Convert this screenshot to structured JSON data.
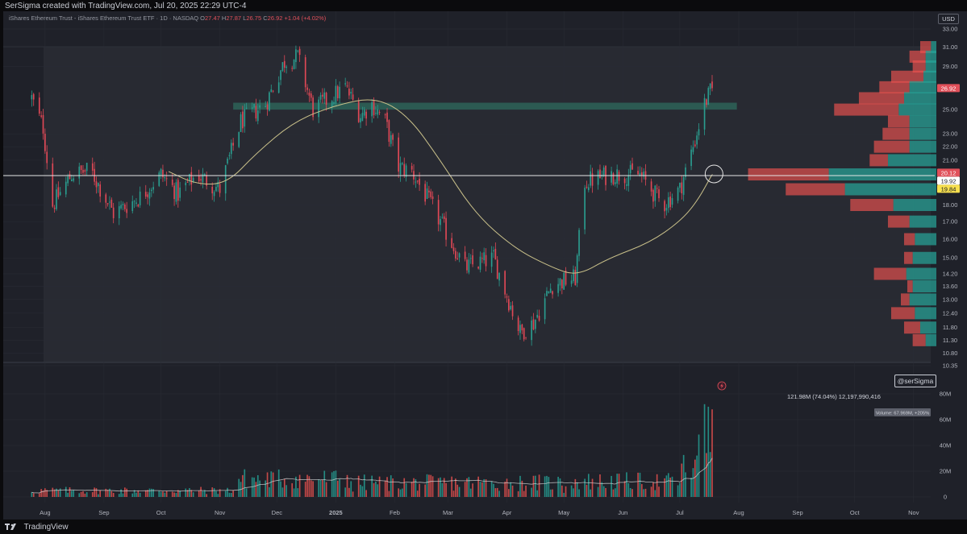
{
  "header": {
    "credit": "SerSigma created with TradingView.com, Jul 20, 2025 22:29 UTC-4"
  },
  "legend": {
    "symbol": "iShares Ethereum Trust - iShares Ethereum Trust ETF · 1D · NASDAQ",
    "o_label": "O",
    "o_value": "27.47",
    "h_label": "H",
    "h_value": "27.87",
    "l_label": "L",
    "l_value": "26.75",
    "c_label": "C",
    "c_value": "26.92",
    "change": "+1.04 (+4.02%)"
  },
  "currency_badge": "USD",
  "watermark": "@serSigma",
  "volume_profile_readout": "121.98M (74.04%) 12,197,990,416",
  "volume_badge": "Volume: 67.969M, +205%",
  "footer": {
    "brand": "TradingView"
  },
  "colors": {
    "background": "#1f2129",
    "up": "#26a69a",
    "down": "#ef5350",
    "up_candle": "#2a9d8f",
    "down_candle": "#e04856",
    "ma_line": "#c9c08a",
    "zone": "#2e6b5e",
    "hline": "#e6e6e6",
    "price_badge_red": "#e0505a",
    "price_badge_yellow": "#f7e04f"
  },
  "icons": [
    "lightning-icon",
    "tradingview-logo-icon"
  ],
  "chart_data": [
    {
      "type": "candlestick",
      "price_axis": {
        "scale": "log",
        "ticks": [
          "33.00",
          "31.00",
          "29.00",
          "25.00",
          "23.00",
          "22.00",
          "21.00",
          "18.00",
          "17.00",
          "16.00",
          "15.00",
          "14.20",
          "13.60",
          "13.00",
          "12.40",
          "11.80",
          "11.30",
          "10.80",
          "10.35"
        ],
        "ylim": [
          10.35,
          33.0
        ]
      },
      "price_labels": [
        {
          "value": "26.92",
          "style": "red"
        },
        {
          "value": "20.12",
          "style": "red"
        },
        {
          "value": "19.92",
          "style": "white"
        },
        {
          "value": "19.84",
          "style": "yellow"
        }
      ],
      "time_axis": {
        "ticks": [
          "Aug",
          "Sep",
          "Oct",
          "Nov",
          "Dec",
          "2025",
          "Feb",
          "Mar",
          "Apr",
          "May",
          "Jun",
          "Jul",
          "Aug",
          "Sep",
          "Oct",
          "Nov"
        ]
      },
      "anchors": [
        {
          "date": "2024-07-25",
          "close": 26.0
        },
        {
          "date": "2024-07-31",
          "close": 23.5
        },
        {
          "date": "2024-08-05",
          "close": 18.0
        },
        {
          "date": "2024-08-15",
          "close": 20.0
        },
        {
          "date": "2024-08-25",
          "close": 20.3
        },
        {
          "date": "2024-09-06",
          "close": 17.5
        },
        {
          "date": "2024-09-20",
          "close": 18.5
        },
        {
          "date": "2024-10-01",
          "close": 20.0
        },
        {
          "date": "2024-10-10",
          "close": 18.7
        },
        {
          "date": "2024-10-20",
          "close": 20.0
        },
        {
          "date": "2024-11-01",
          "close": 19.0
        },
        {
          "date": "2024-11-12",
          "close": 24.0
        },
        {
          "date": "2024-11-25",
          "close": 25.5
        },
        {
          "date": "2024-12-05",
          "close": 29.5
        },
        {
          "date": "2024-12-12",
          "close": 30.0
        },
        {
          "date": "2024-12-20",
          "close": 25.0
        },
        {
          "date": "2025-01-06",
          "close": 27.0
        },
        {
          "date": "2025-01-14",
          "close": 24.5
        },
        {
          "date": "2025-01-20",
          "close": 25.5
        },
        {
          "date": "2025-01-27",
          "close": 24.0
        },
        {
          "date": "2025-02-03",
          "close": 20.5
        },
        {
          "date": "2025-02-10",
          "close": 20.2
        },
        {
          "date": "2025-02-25",
          "close": 17.0
        },
        {
          "date": "2025-03-10",
          "close": 14.5
        },
        {
          "date": "2025-03-25",
          "close": 15.0
        },
        {
          "date": "2025-04-08",
          "close": 11.6
        },
        {
          "date": "2025-04-15",
          "close": 12.0
        },
        {
          "date": "2025-04-25",
          "close": 13.7
        },
        {
          "date": "2025-05-07",
          "close": 14.0
        },
        {
          "date": "2025-05-12",
          "close": 19.5
        },
        {
          "date": "2025-05-25",
          "close": 20.0
        },
        {
          "date": "2025-06-10",
          "close": 20.0
        },
        {
          "date": "2025-06-22",
          "close": 18.0
        },
        {
          "date": "2025-07-01",
          "close": 19.0
        },
        {
          "date": "2025-07-09",
          "close": 22.5
        },
        {
          "date": "2025-07-14",
          "close": 25.5
        },
        {
          "date": "2025-07-18",
          "close": 26.92
        }
      ],
      "moving_average": [
        {
          "date": "2024-10-05",
          "value": 20.2
        },
        {
          "date": "2024-10-20",
          "value": 19.3
        },
        {
          "date": "2024-11-05",
          "value": 19.4
        },
        {
          "date": "2024-11-20",
          "value": 21.5
        },
        {
          "date": "2024-12-10",
          "value": 24.0
        },
        {
          "date": "2025-01-01",
          "value": 25.4
        },
        {
          "date": "2025-01-22",
          "value": 26.1
        },
        {
          "date": "2025-02-08",
          "value": 24.5
        },
        {
          "date": "2025-02-25",
          "value": 21.0
        },
        {
          "date": "2025-03-15",
          "value": 17.5
        },
        {
          "date": "2025-04-05",
          "value": 15.5
        },
        {
          "date": "2025-04-25",
          "value": 14.5
        },
        {
          "date": "2025-05-08",
          "value": 14.1
        },
        {
          "date": "2025-05-25",
          "value": 15.0
        },
        {
          "date": "2025-06-15",
          "value": 15.8
        },
        {
          "date": "2025-07-01",
          "value": 17.0
        },
        {
          "date": "2025-07-10",
          "value": 18.2
        },
        {
          "date": "2025-07-18",
          "value": 20.0
        }
      ],
      "horizontal_line": 19.92,
      "zone": {
        "low": 25.0,
        "high": 25.6,
        "from": "2024-11-08",
        "to": "2025-07-31"
      },
      "volume_profile": [
        {
          "price": 31.0,
          "up": 0.05,
          "down": 0.1
        },
        {
          "price": 30.0,
          "up": 0.1,
          "down": 0.15
        },
        {
          "price": 29.0,
          "up": 0.1,
          "down": 0.12
        },
        {
          "price": 28.0,
          "up": 0.12,
          "down": 0.3
        },
        {
          "price": 27.0,
          "up": 0.25,
          "down": 0.28
        },
        {
          "price": 26.0,
          "up": 0.3,
          "down": 0.42
        },
        {
          "price": 25.0,
          "up": 0.35,
          "down": 0.6
        },
        {
          "price": 24.0,
          "up": 0.25,
          "down": 0.2
        },
        {
          "price": 23.0,
          "up": 0.25,
          "down": 0.25
        },
        {
          "price": 22.0,
          "up": 0.25,
          "down": 0.33
        },
        {
          "price": 21.0,
          "up": 0.45,
          "down": 0.17
        },
        {
          "price": 20.0,
          "up": 1.0,
          "down": 0.75
        },
        {
          "price": 19.0,
          "up": 0.85,
          "down": 0.55
        },
        {
          "price": 18.0,
          "up": 0.4,
          "down": 0.4
        },
        {
          "price": 17.0,
          "up": 0.25,
          "down": 0.2
        },
        {
          "price": 16.0,
          "up": 0.2,
          "down": 0.1
        },
        {
          "price": 15.0,
          "up": 0.22,
          "down": 0.08
        },
        {
          "price": 14.2,
          "up": 0.28,
          "down": 0.3
        },
        {
          "price": 13.6,
          "up": 0.22,
          "down": 0.05
        },
        {
          "price": 13.0,
          "up": 0.25,
          "down": 0.08
        },
        {
          "price": 12.4,
          "up": 0.2,
          "down": 0.22
        },
        {
          "price": 11.8,
          "up": 0.15,
          "down": 0.15
        },
        {
          "price": 11.3,
          "up": 0.1,
          "down": 0.12
        }
      ]
    },
    {
      "type": "bar",
      "title": "Volume",
      "volume_axis": {
        "ticks": [
          "80M",
          "60M",
          "40M",
          "20M",
          "0"
        ],
        "ylim": [
          0,
          85
        ]
      },
      "last_volume_m": 67.969,
      "peak_volume_m": [
        {
          "date": "2025-07-14",
          "value": 72
        },
        {
          "date": "2025-07-16",
          "value": 70
        },
        {
          "date": "2025-07-18",
          "value": 67.969
        }
      ]
    }
  ]
}
